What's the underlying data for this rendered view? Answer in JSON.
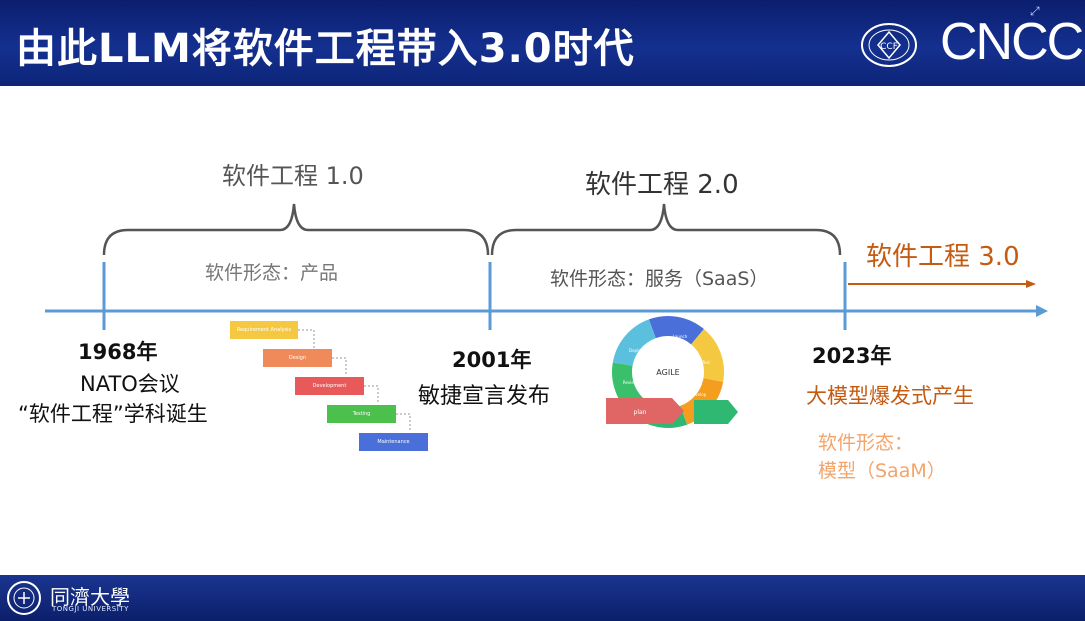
{
  "header": {
    "title": "由此LLM将软件工程带入3.0时代",
    "logo_text": "CNCC",
    "seal_text": "CCF"
  },
  "eras": {
    "se1": {
      "label": "软件工程 1.0",
      "form": "软件形态：产品"
    },
    "se2": {
      "label": "软件工程 2.0",
      "form": "软件形态：服务（SaaS）"
    },
    "se3": {
      "label": "软件工程 3.0"
    }
  },
  "milestones": {
    "m1968": {
      "year": "1968年",
      "line1": "NATO会议",
      "line2": "“软件工程”学科诞生"
    },
    "m2001": {
      "year": "2001年",
      "line1": "敏捷宣言发布"
    },
    "m2023": {
      "year": "2023年",
      "line1": "大模型爆发式产生",
      "form_line1": "软件形态：",
      "form_line2": "模型（SaaM）"
    }
  },
  "waterfall_steps": [
    {
      "label": "Requirement Analysis",
      "color": "#f5c842"
    },
    {
      "label": "Design",
      "color": "#f08a5a"
    },
    {
      "label": "Development",
      "color": "#e85a5a"
    },
    {
      "label": "Testing",
      "color": "#4cc04c"
    },
    {
      "label": "Maintenance",
      "color": "#4a6fd8"
    }
  ],
  "agile": {
    "center": "AGILE",
    "plan": "plan",
    "segments": [
      "Launch",
      "Test",
      "Develop",
      "Design",
      "Review",
      "Deploy"
    ]
  },
  "footer": {
    "university": "同濟大學",
    "university_en": "TONGJI UNIVERSITY"
  },
  "colors": {
    "header_bg": "#14308f",
    "timeline": "#5b9bd5",
    "era3": "#c55a11",
    "era3_form": "#f4a46a"
  }
}
